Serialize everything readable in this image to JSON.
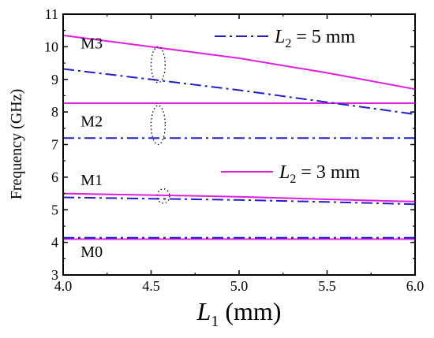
{
  "chart_data": {
    "type": "line",
    "xlabel": {
      "symbol": "L",
      "subscript": "1",
      "unit": "(mm)"
    },
    "ylabel": "Frequency (GHz)",
    "xlim": [
      4.0,
      6.0
    ],
    "ylim": [
      3,
      11
    ],
    "xticks": [
      "4.0",
      "4.5",
      "5.0",
      "5.5",
      "6.0"
    ],
    "yticks": [
      "3",
      "4",
      "5",
      "6",
      "7",
      "8",
      "9",
      "10",
      "11"
    ],
    "grid": false,
    "legend": [
      {
        "symbol": "L",
        "subscript": "2",
        "text": " = 5 mm",
        "style": "dash-dot",
        "color": "#1f1fd0",
        "position": "top-right"
      },
      {
        "symbol": "L",
        "subscript": "2",
        "text": " = 3 mm",
        "style": "solid",
        "color": "#e01ee0",
        "position": "middle-right"
      }
    ],
    "mode_labels": [
      {
        "text": "M3",
        "x": 4.1,
        "y": 9.95
      },
      {
        "text": "M2",
        "x": 4.1,
        "y": 7.55
      },
      {
        "text": "M1",
        "x": 4.1,
        "y": 5.75
      },
      {
        "text": "M0",
        "x": 4.1,
        "y": 3.55
      }
    ],
    "ellipses": [
      {
        "cx": 4.54,
        "cy": 9.45,
        "rx": 0.04,
        "ry": 0.55
      },
      {
        "cx": 4.54,
        "cy": 7.6,
        "rx": 0.04,
        "ry": 0.6
      },
      {
        "cx": 4.57,
        "cy": 5.42,
        "rx": 0.035,
        "ry": 0.22
      }
    ],
    "series": [
      {
        "name": "L2 = 3 mm",
        "mode": "M3",
        "style": "solid",
        "color": "#e01ee0",
        "x": [
          4.0,
          4.5,
          5.0,
          5.5,
          6.0
        ],
        "y": [
          10.35,
          10.0,
          9.65,
          9.2,
          8.7
        ]
      },
      {
        "name": "L2 = 3 mm",
        "mode": "M2",
        "style": "solid",
        "color": "#e01ee0",
        "x": [
          4.0,
          6.0
        ],
        "y": [
          8.27,
          8.27
        ]
      },
      {
        "name": "L2 = 3 mm",
        "mode": "M1",
        "style": "solid",
        "color": "#e01ee0",
        "x": [
          4.0,
          4.5,
          5.0,
          5.5,
          6.0
        ],
        "y": [
          5.5,
          5.45,
          5.4,
          5.32,
          5.25
        ]
      },
      {
        "name": "L2 = 3 mm",
        "mode": "M0",
        "style": "solid",
        "color": "#e01ee0",
        "x": [
          4.0,
          6.0
        ],
        "y": [
          4.1,
          4.1
        ]
      },
      {
        "name": "L2 = 5 mm",
        "mode": "M3",
        "style": "dash-dot",
        "color": "#1f1fd0",
        "x": [
          4.0,
          4.5,
          5.0,
          5.5,
          6.0
        ],
        "y": [
          9.32,
          9.0,
          8.67,
          8.3,
          7.93
        ]
      },
      {
        "name": "L2 = 5 mm",
        "mode": "M2",
        "style": "dash-dot",
        "color": "#1f1fd0",
        "x": [
          4.0,
          6.0
        ],
        "y": [
          7.2,
          7.2
        ]
      },
      {
        "name": "L2 = 5 mm",
        "mode": "M1",
        "style": "dash-dot",
        "color": "#1f1fd0",
        "x": [
          4.0,
          4.5,
          5.0,
          5.5,
          6.0
        ],
        "y": [
          5.38,
          5.34,
          5.3,
          5.24,
          5.17
        ]
      },
      {
        "name": "L2 = 5 mm",
        "mode": "M0",
        "style": "dash-dot",
        "color": "#1f1fd0",
        "x": [
          4.0,
          6.0
        ],
        "y": [
          4.14,
          4.14
        ]
      }
    ]
  }
}
